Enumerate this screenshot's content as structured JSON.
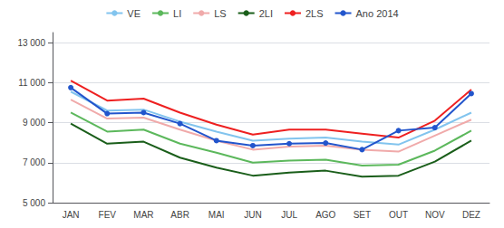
{
  "chart_data": {
    "type": "line",
    "categories": [
      "JAN",
      "FEV",
      "MAR",
      "ABR",
      "MAI",
      "JUN",
      "JUL",
      "AGO",
      "SET",
      "OUT",
      "NOV",
      "DEZ"
    ],
    "series": [
      {
        "name": "VE",
        "color": "#82c4ee",
        "values": [
          10550,
          9600,
          9650,
          9050,
          8550,
          8100,
          8200,
          8250,
          8050,
          7900,
          8650,
          9500
        ]
      },
      {
        "name": "LI",
        "color": "#5cb85c",
        "values": [
          9500,
          8550,
          8650,
          7950,
          7500,
          7000,
          7100,
          7150,
          6850,
          6900,
          7600,
          8600
        ]
      },
      {
        "name": "LS",
        "color": "#f0aaaa",
        "values": [
          10150,
          9200,
          9250,
          8650,
          8100,
          7650,
          7800,
          7850,
          7650,
          7550,
          8350,
          9150
        ]
      },
      {
        "name": "2LI",
        "color": "#1a5e1a",
        "values": [
          8950,
          7950,
          8050,
          7250,
          6750,
          6350,
          6500,
          6600,
          6300,
          6350,
          7050,
          8100
        ]
      },
      {
        "name": "2LS",
        "color": "#ee2020",
        "values": [
          11100,
          10100,
          10200,
          9500,
          8900,
          8400,
          8650,
          8650,
          8450,
          8250,
          9100,
          10650
        ]
      },
      {
        "name": "Ano 2014",
        "color": "#2255cc",
        "marker": "circle",
        "values": [
          10750,
          9450,
          9500,
          8950,
          8100,
          7850,
          7950,
          7980,
          7650,
          8600,
          8750,
          10450
        ]
      }
    ],
    "ylim": [
      5000,
      13500
    ],
    "yticks": [
      {
        "value": 5000,
        "label": "5 000"
      },
      {
        "value": 7000,
        "label": "7 000"
      },
      {
        "value": 9000,
        "label": "9 000"
      },
      {
        "value": 11000,
        "label": "11 000"
      },
      {
        "value": 13000,
        "label": "13 000"
      }
    ],
    "grid": true,
    "legend": "top"
  }
}
